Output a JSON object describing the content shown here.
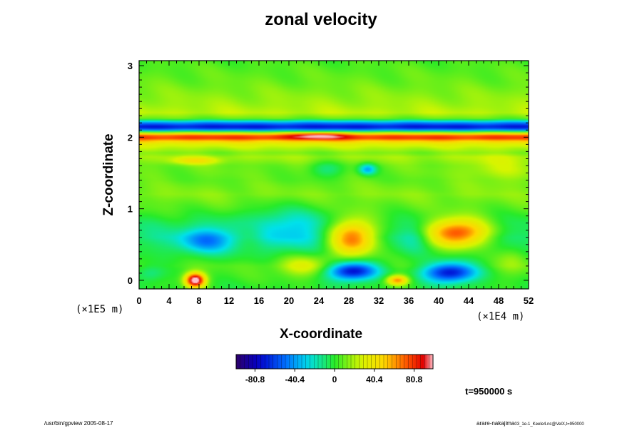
{
  "chart_data": {
    "type": "heatmap",
    "title": "zonal velocity",
    "xlabel": "X-coordinate",
    "ylabel": "Z-coordinate",
    "x_unit": "(×1E4 m)",
    "y_unit": "(×1E5 m)",
    "xlim": [
      0,
      52
    ],
    "ylim": [
      0,
      3
    ],
    "x_ticks": [
      "0",
      "4",
      "8",
      "12",
      "16",
      "20",
      "24",
      "28",
      "32",
      "36",
      "40",
      "44",
      "48",
      "52"
    ],
    "y_ticks": [
      "0",
      "1",
      "2",
      "3"
    ],
    "colorbar": {
      "range": [
        -100,
        100
      ],
      "tick_values": [
        -80.8,
        -40.4,
        0,
        40.4,
        80.8
      ],
      "tick_labels": [
        "-80.8",
        "-40.4",
        "0",
        "40.4",
        "80.8"
      ]
    },
    "layers": [
      {
        "z": 3.05,
        "value": 5
      },
      {
        "z": 2.75,
        "value": 10
      },
      {
        "z": 2.6,
        "value": 14
      },
      {
        "z": 2.45,
        "value": 18
      },
      {
        "z": 2.34,
        "value": 22
      },
      {
        "z": 2.26,
        "value": 8
      },
      {
        "z": 2.2,
        "value": -45
      },
      {
        "z": 2.15,
        "value": -72
      },
      {
        "z": 2.11,
        "value": -55
      },
      {
        "z": 2.07,
        "value": 10
      },
      {
        "z": 2.03,
        "value": 68
      },
      {
        "z": 1.99,
        "value": 82
      },
      {
        "z": 1.95,
        "value": 55
      },
      {
        "z": 1.9,
        "value": 30
      },
      {
        "z": 1.84,
        "value": 20
      },
      {
        "z": 1.78,
        "value": 12
      },
      {
        "z": 1.72,
        "value": 18
      },
      {
        "z": 1.6,
        "value": 10
      },
      {
        "z": 1.4,
        "value": 8
      },
      {
        "z": 1.2,
        "value": 14
      },
      {
        "z": 1.0,
        "value": 6
      },
      {
        "z": 0.8,
        "value": -6
      },
      {
        "z": 0.6,
        "value": -12
      },
      {
        "z": 0.4,
        "value": -4
      },
      {
        "z": 0.2,
        "value": 6
      },
      {
        "z": -0.1,
        "value": 0
      }
    ],
    "features": [
      {
        "x": 24,
        "z": 2.02,
        "rx": 4,
        "rz": 0.05,
        "value": 28
      },
      {
        "x": 7.5,
        "z": 1.67,
        "rx": 3,
        "rz": 0.05,
        "value": 28
      },
      {
        "x": 48,
        "z": 1.55,
        "rx": 5,
        "rz": 0.2,
        "value": 14
      },
      {
        "x": 30.5,
        "z": 1.55,
        "rx": 1.2,
        "rz": 0.08,
        "value": -45
      },
      {
        "x": 25,
        "z": 1.55,
        "rx": 2.5,
        "rz": 0.12,
        "value": -20
      },
      {
        "x": 9,
        "z": 0.55,
        "rx": 3.5,
        "rz": 0.17,
        "value": -38
      },
      {
        "x": 20,
        "z": 0.75,
        "rx": 6,
        "rz": 0.3,
        "value": -22
      },
      {
        "x": 15,
        "z": 0.65,
        "rx": 2,
        "rz": 0.2,
        "value": 12
      },
      {
        "x": 28.5,
        "z": 0.6,
        "rx": 3.2,
        "rz": 0.25,
        "value": 80
      },
      {
        "x": 42.5,
        "z": 0.66,
        "rx": 4.2,
        "rz": 0.2,
        "value": 86
      },
      {
        "x": 37,
        "z": 0.6,
        "rx": 2,
        "rz": 0.2,
        "value": -14
      },
      {
        "x": 28.5,
        "z": 0.13,
        "rx": 3.3,
        "rz": 0.13,
        "value": -82
      },
      {
        "x": 41.5,
        "z": 0.11,
        "rx": 3.5,
        "rz": 0.14,
        "value": -78
      },
      {
        "x": 34.5,
        "z": 0.0,
        "rx": 1.4,
        "rz": 0.07,
        "value": 62
      },
      {
        "x": 7.5,
        "z": 0.0,
        "rx": 1.3,
        "rz": 0.1,
        "value": 110
      },
      {
        "x": 22,
        "z": 0.2,
        "rx": 3.5,
        "rz": 0.15,
        "value": 25
      },
      {
        "x": 1.5,
        "z": 0.1,
        "rx": 2,
        "rz": 0.12,
        "value": -18
      },
      {
        "x": 50,
        "z": 0.3,
        "rx": 2,
        "rz": 0.2,
        "value": 14
      }
    ]
  },
  "time_label": "t=950000 s",
  "footer_left": "/usr/bin/gpview 2005-08-17",
  "footer_right_name": "arare-nakajima",
  "footer_right_file": "03_1e-1_Keele4.nc@VelX,t=950000"
}
